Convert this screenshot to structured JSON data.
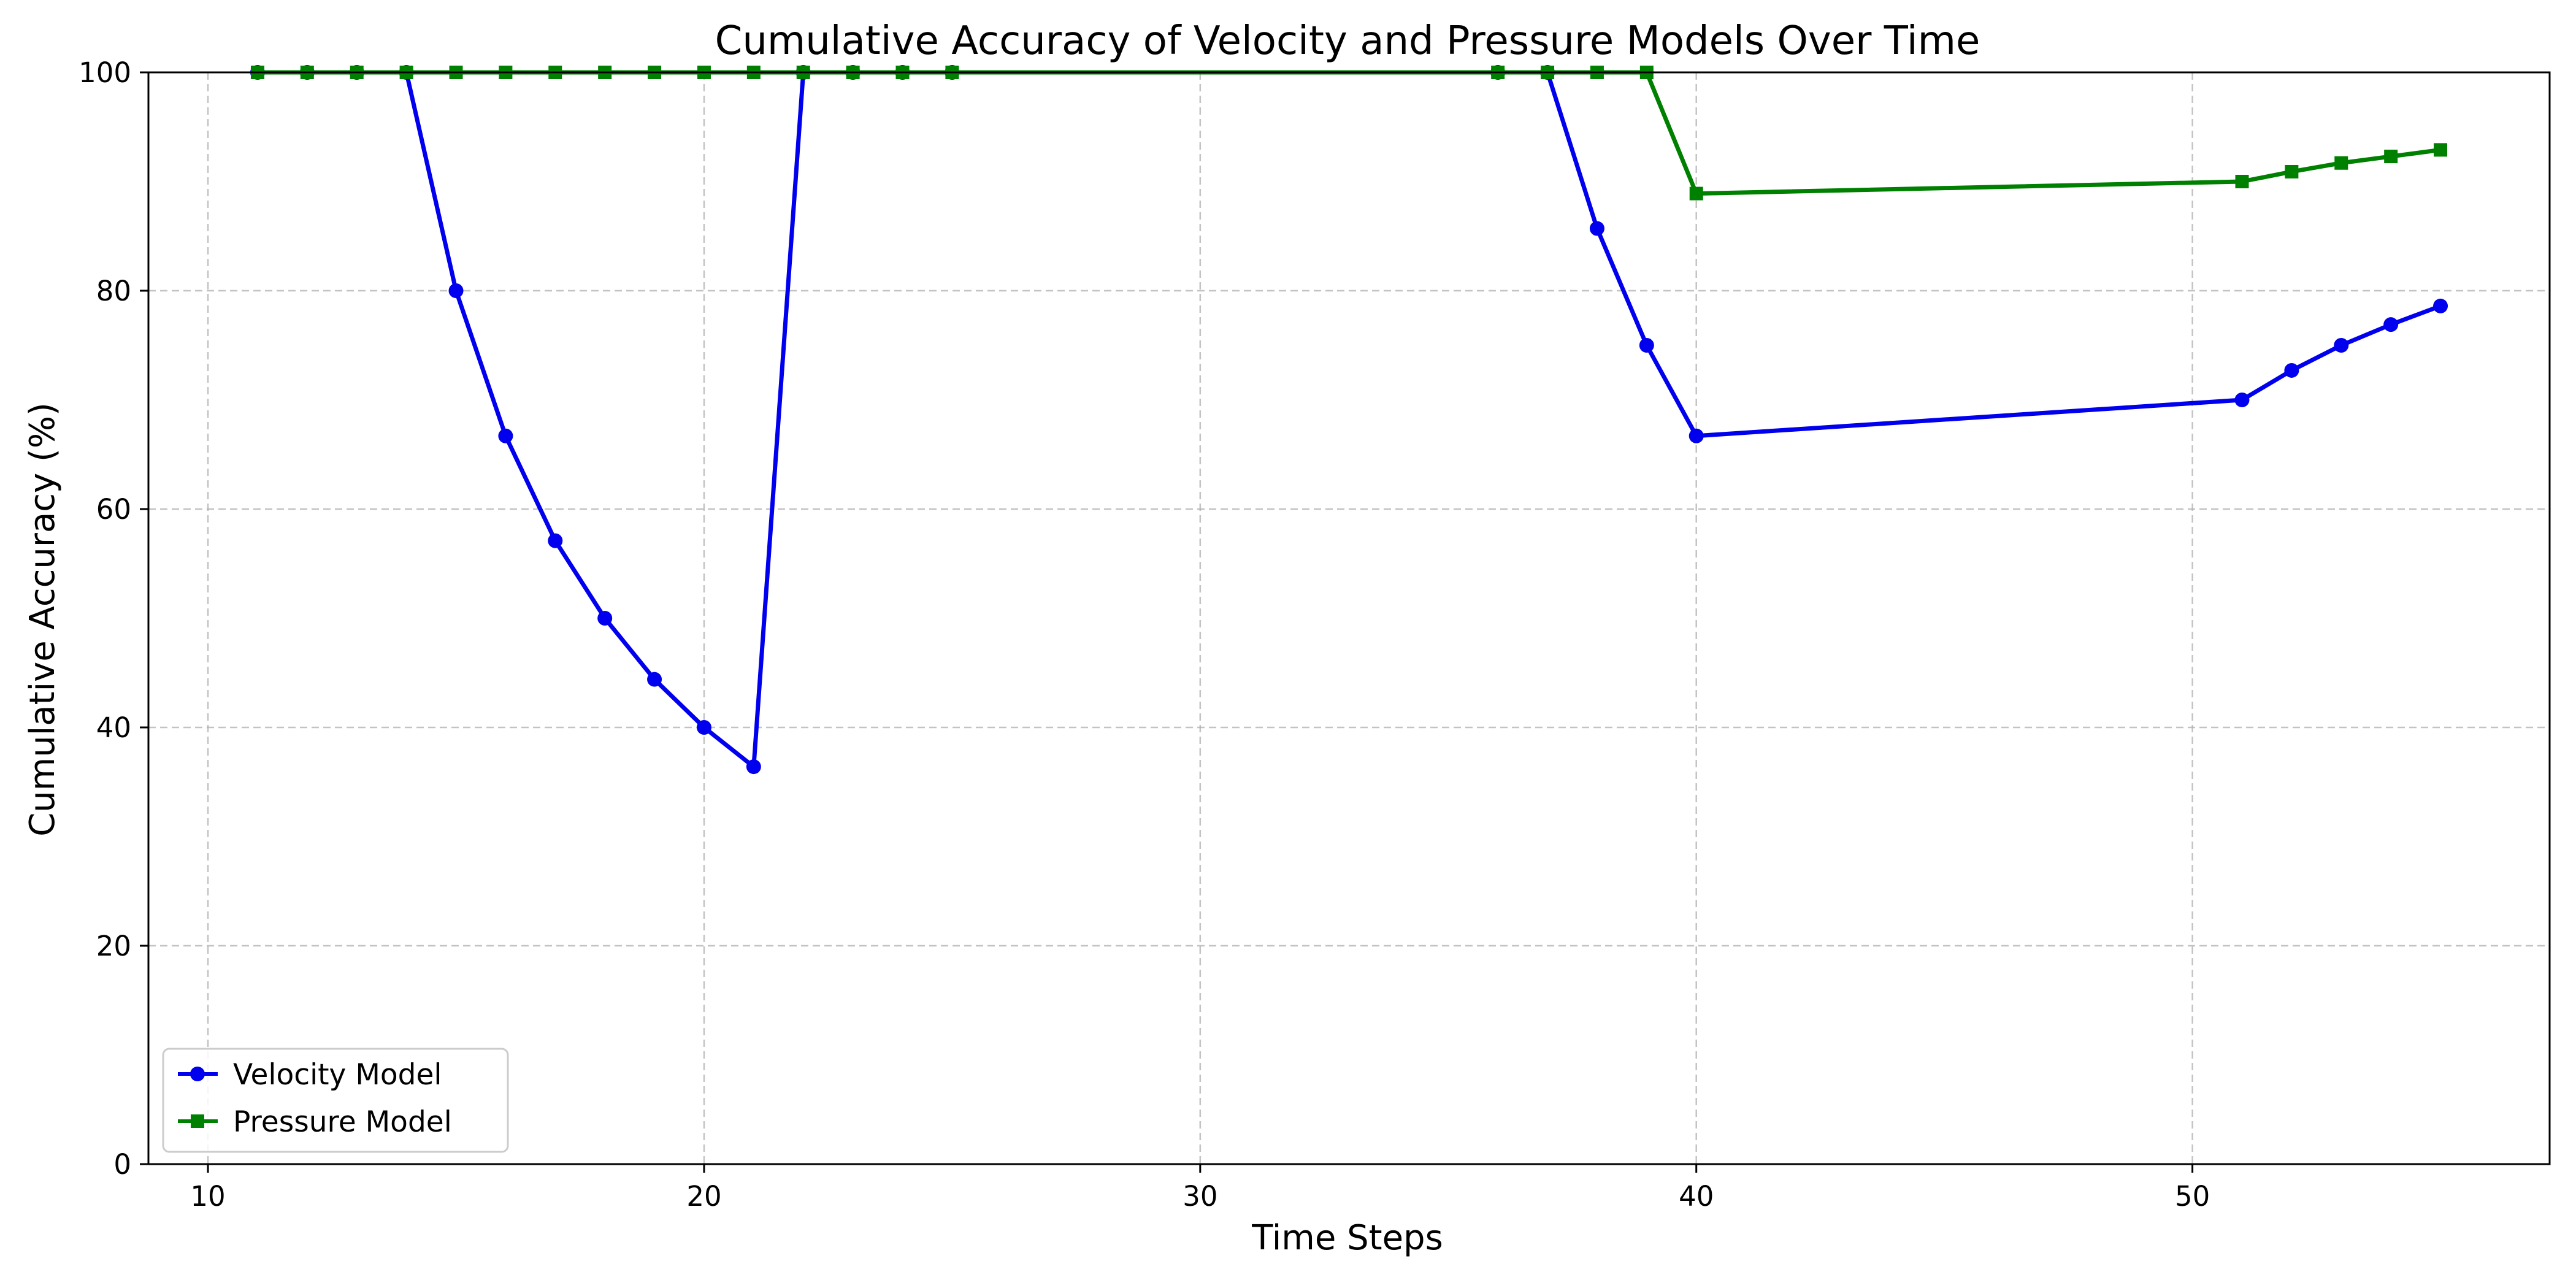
{
  "chart_data": {
    "type": "line",
    "title": "Cumulative Accuracy of Velocity and Pressure Models Over Time",
    "xlabel": "Time Steps",
    "ylabel": "Cumulative Accuracy (%)",
    "xlim": [
      8.8,
      57.2
    ],
    "ylim": [
      0,
      100
    ],
    "xticks": [
      10,
      20,
      30,
      40,
      50
    ],
    "yticks": [
      0,
      20,
      40,
      60,
      80,
      100
    ],
    "grid": true,
    "legend_position": "lower-left",
    "series": [
      {
        "name": "Velocity Model",
        "color": "#0000ee",
        "marker": "circle",
        "x": [
          11,
          12,
          13,
          14,
          15,
          16,
          17,
          18,
          19,
          20,
          21,
          22,
          23,
          24,
          25,
          36,
          37,
          38,
          39,
          40,
          51,
          52,
          53,
          54,
          55
        ],
        "y": [
          100,
          100,
          100,
          100,
          80,
          66.7,
          57.1,
          50,
          44.4,
          40,
          36.4,
          100,
          100,
          100,
          100,
          100,
          100,
          85.7,
          75,
          66.7,
          70,
          72.7,
          75,
          76.9,
          78.6
        ]
      },
      {
        "name": "Pressure Model",
        "color": "#008000",
        "marker": "square",
        "x": [
          11,
          12,
          13,
          14,
          15,
          16,
          17,
          18,
          19,
          20,
          21,
          22,
          23,
          24,
          25,
          36,
          37,
          38,
          39,
          40,
          51,
          52,
          53,
          54,
          55
        ],
        "y": [
          100,
          100,
          100,
          100,
          100,
          100,
          100,
          100,
          100,
          100,
          100,
          100,
          100,
          100,
          100,
          100,
          100,
          100,
          100,
          88.9,
          90,
          90.9,
          91.7,
          92.3,
          92.9
        ]
      }
    ]
  }
}
